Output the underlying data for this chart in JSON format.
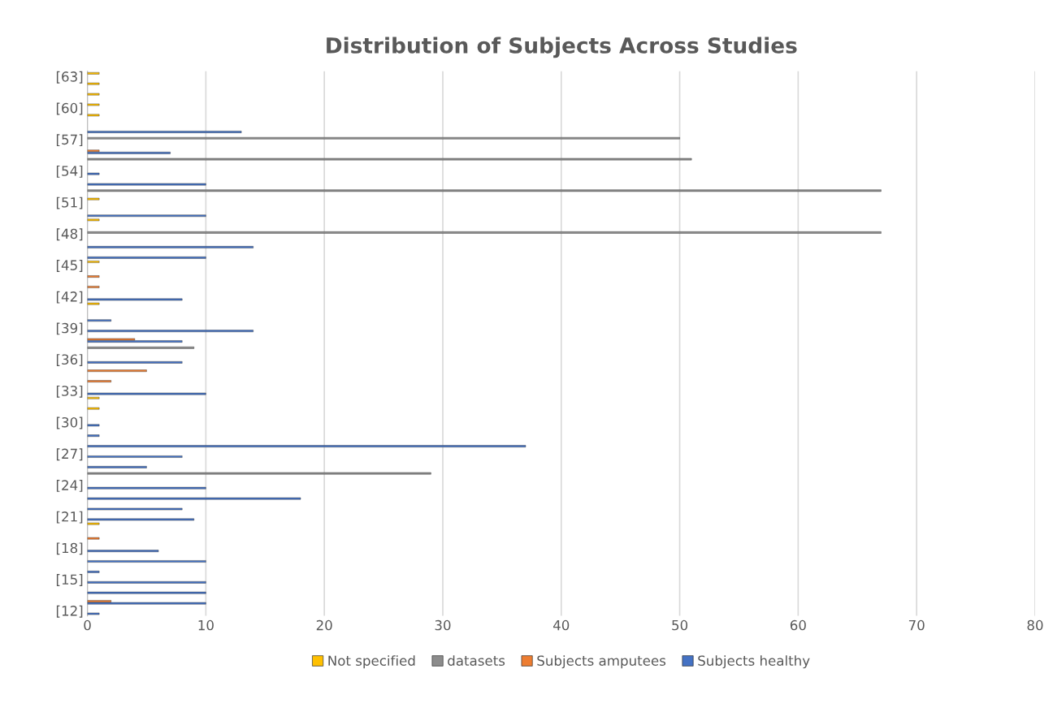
{
  "chart_data": {
    "type": "bar",
    "orientation": "horizontal",
    "title": "Distribution of Subjects Across Studies",
    "categories": [
      "[63]",
      null,
      null,
      "[60]",
      null,
      null,
      "[57]",
      null,
      null,
      "[54]",
      null,
      null,
      "[51]",
      null,
      null,
      "[48]",
      null,
      null,
      "[45]",
      null,
      null,
      "[42]",
      null,
      null,
      "[39]",
      null,
      null,
      "[36]",
      null,
      null,
      "[33]",
      null,
      null,
      "[30]",
      null,
      null,
      "[27]",
      null,
      null,
      "[24]",
      null,
      null,
      "[21]",
      null,
      null,
      "[18]",
      null,
      null,
      "[15]",
      null,
      null,
      "[12]"
    ],
    "series": [
      {
        "name": "Not specified",
        "color": "#ffc000",
        "values": [
          1,
          1,
          1,
          1,
          1,
          null,
          null,
          null,
          null,
          null,
          null,
          null,
          1,
          null,
          1,
          null,
          null,
          null,
          1,
          null,
          null,
          null,
          1,
          null,
          null,
          null,
          null,
          null,
          null,
          null,
          null,
          1,
          1,
          null,
          null,
          null,
          null,
          null,
          null,
          null,
          null,
          null,
          null,
          1,
          null,
          null,
          null,
          null,
          null,
          null,
          null,
          null
        ]
      },
      {
        "name": "datasets",
        "color": "#8c8c8c",
        "values": [
          null,
          null,
          null,
          null,
          null,
          null,
          50,
          null,
          51,
          null,
          null,
          67,
          null,
          null,
          null,
          67,
          null,
          null,
          null,
          null,
          null,
          null,
          null,
          null,
          null,
          null,
          9,
          null,
          null,
          null,
          null,
          null,
          null,
          null,
          null,
          null,
          null,
          null,
          29,
          null,
          null,
          null,
          null,
          null,
          null,
          null,
          null,
          null,
          null,
          null,
          null,
          null
        ]
      },
      {
        "name": "Subjects amputees",
        "color": "#ed7d31",
        "values": [
          null,
          null,
          null,
          null,
          null,
          null,
          null,
          1,
          null,
          null,
          null,
          null,
          null,
          null,
          null,
          null,
          null,
          null,
          null,
          1,
          1,
          null,
          null,
          null,
          null,
          4,
          null,
          null,
          5,
          2,
          null,
          null,
          null,
          null,
          null,
          null,
          null,
          null,
          null,
          null,
          null,
          null,
          null,
          null,
          1,
          null,
          null,
          null,
          null,
          null,
          2,
          null
        ]
      },
      {
        "name": "Subjects healthy",
        "color": "#4472c4",
        "values": [
          null,
          null,
          null,
          null,
          null,
          13,
          null,
          7,
          null,
          1,
          10,
          null,
          null,
          10,
          null,
          null,
          14,
          10,
          null,
          null,
          null,
          8,
          null,
          2,
          14,
          8,
          null,
          8,
          null,
          null,
          10,
          null,
          null,
          1,
          1,
          37,
          8,
          5,
          null,
          10,
          18,
          8,
          9,
          null,
          null,
          6,
          10,
          1,
          10,
          10,
          10,
          1
        ]
      }
    ],
    "xlim": [
      0,
      80
    ],
    "xticks": [
      0,
      10,
      20,
      30,
      40,
      50,
      60,
      70,
      80
    ],
    "grid": "x",
    "legend": "bottom"
  }
}
